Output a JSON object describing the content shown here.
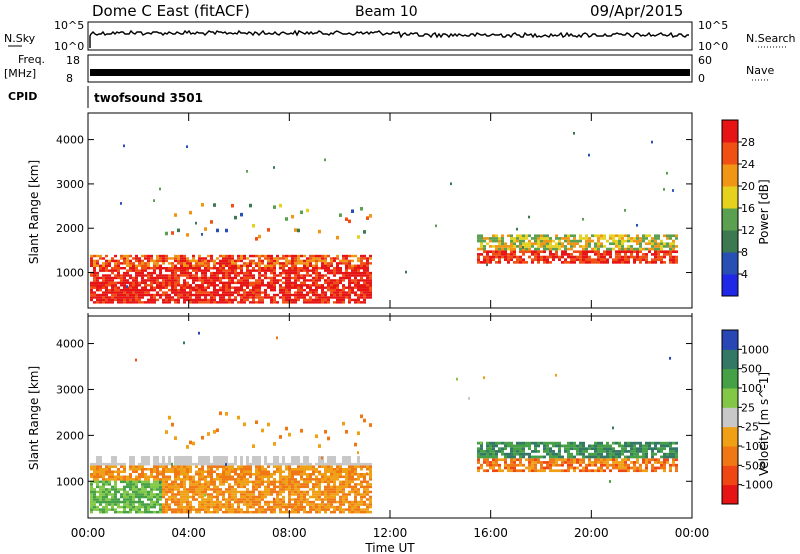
{
  "header": {
    "title": "Dome C East (fitACF)",
    "beam": "Beam 10",
    "date": "09/Apr/2015"
  },
  "top_panels": {
    "nsky_label": "N.Sky",
    "nsky_ticks": [
      "10^5",
      "10^0"
    ],
    "nsearch_label": "N.Search",
    "nsearch_ticks": [
      "10^5",
      "10^0"
    ],
    "freq_label": "Freq.",
    "freq_unit": "[MHz]",
    "freq_ticks": [
      "18",
      "8"
    ],
    "nave_label": "Nave",
    "nave_ticks": [
      "60",
      "0"
    ],
    "cpid_label": "CPID",
    "cpid_value": "twofsound 3501"
  },
  "chart_data": [
    {
      "type": "heatmap",
      "quantity": "Power",
      "ylabel": "Slant Range [km]",
      "y_ticks": [
        1000,
        2000,
        3000,
        4000
      ],
      "ylim": [
        200,
        4600
      ],
      "colorbar_label": "Power [dB]",
      "colorbar_ticks": [
        "4",
        "8",
        "12",
        "16",
        "20",
        "24",
        "28"
      ],
      "colorbar_colors": [
        "#1e28e6",
        "#2850b4",
        "#3c7850",
        "#5aa050",
        "#e6d21e",
        "#f09614",
        "#f05014",
        "#e61414"
      ],
      "colorbar_colors_note": "blue to red, low to high"
    },
    {
      "type": "heatmap",
      "quantity": "Velocity",
      "ylabel": "Slant Range [km]",
      "y_ticks": [
        1000,
        2000,
        3000,
        4000
      ],
      "ylim": [
        200,
        4600
      ],
      "colorbar_label": "Velocity [m s^-1]",
      "colorbar_ticks": [
        "1000",
        "500",
        "100",
        "25",
        "-25",
        "-100",
        "-500",
        "-1000"
      ],
      "colorbar_colors": [
        "#2846b4",
        "#327864",
        "#46a046",
        "#82c846",
        "#c8c8c8",
        "#f0a014",
        "#f07814",
        "#f04614",
        "#e61414"
      ]
    }
  ],
  "x_axis": {
    "ticks": [
      "00:00",
      "04:00",
      "08:00",
      "12:00",
      "16:00",
      "20:00",
      "00:00"
    ],
    "label": "Time UT"
  }
}
